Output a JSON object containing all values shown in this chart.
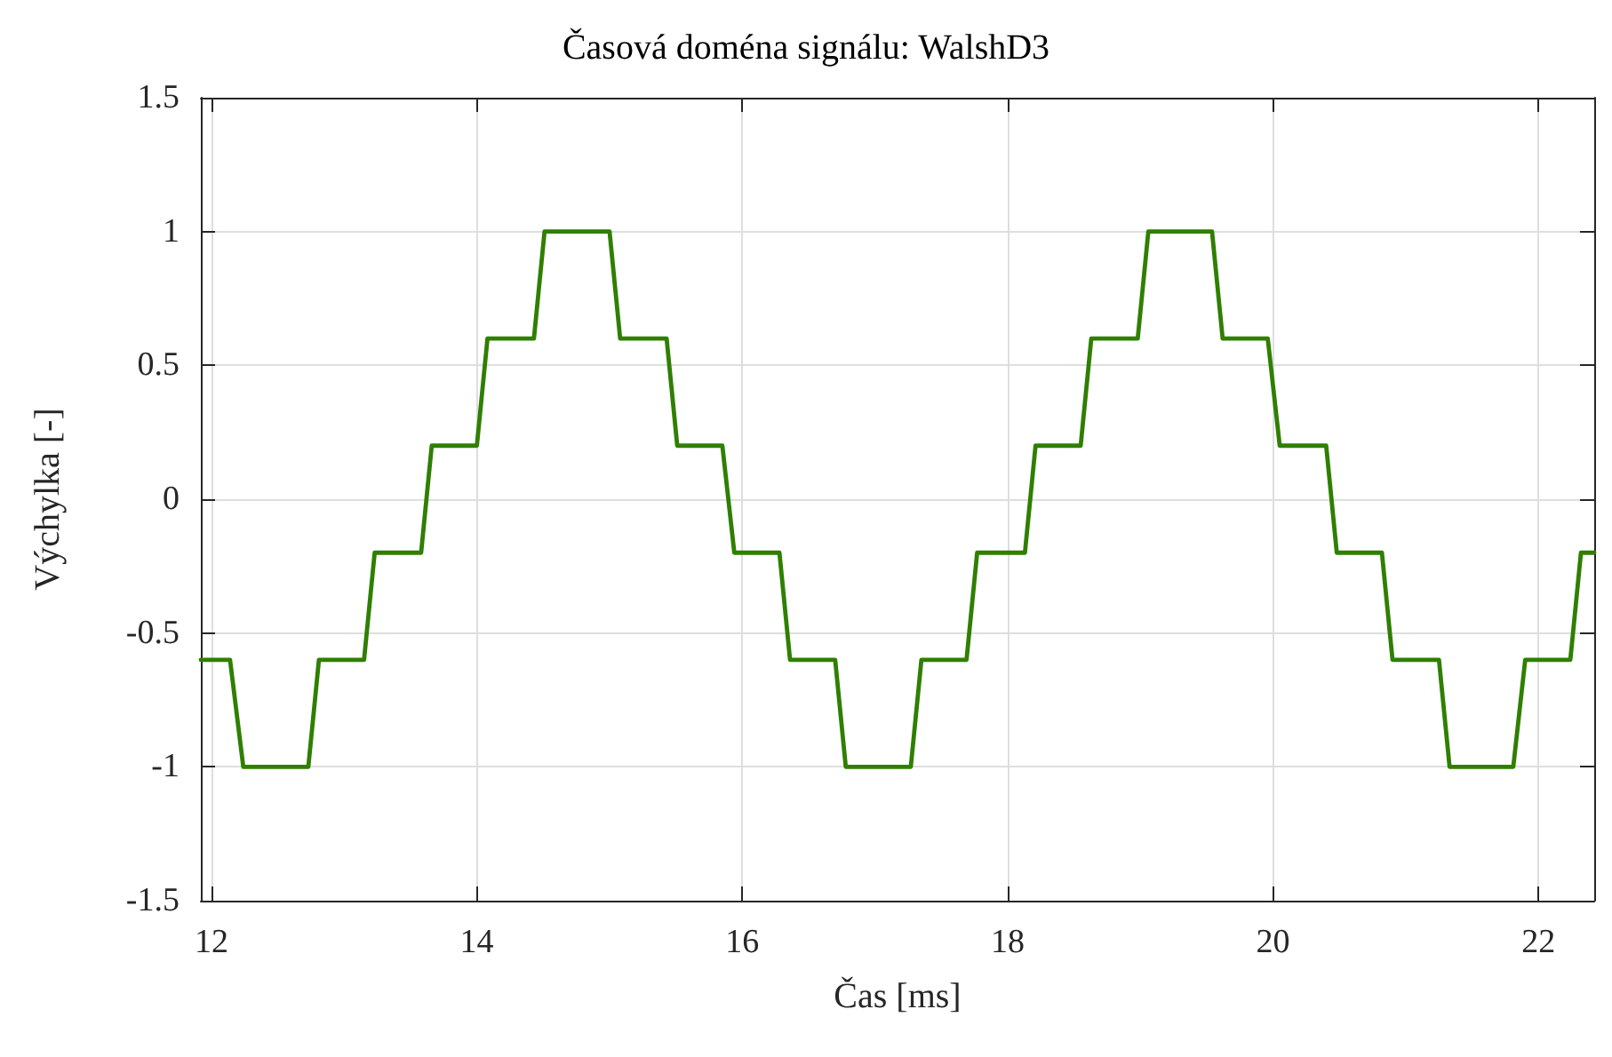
{
  "chart_data": {
    "type": "line",
    "title": "Časová doména signálu: WalshD3",
    "xlabel": "Čas [ms]",
    "ylabel": "Výchylka [-]",
    "x": [
      11.92,
      12.14,
      12.24,
      12.73,
      12.81,
      13.15,
      13.23,
      13.58,
      13.66,
      14.0,
      14.08,
      14.43,
      14.51,
      15.0,
      15.08,
      15.43,
      15.51,
      15.85,
      15.94,
      16.28,
      16.36,
      16.7,
      16.78,
      17.27,
      17.35,
      17.69,
      17.77,
      18.13,
      18.21,
      18.55,
      18.63,
      18.98,
      19.06,
      19.54,
      19.62,
      19.96,
      20.05,
      20.4,
      20.48,
      20.82,
      20.9,
      21.25,
      21.33,
      21.81,
      21.9,
      22.24,
      22.32,
      22.42
    ],
    "series": [
      {
        "color": "#2f7f00",
        "values": [
          -0.6,
          -0.6,
          -1,
          -1,
          -0.6,
          -0.6,
          -0.2,
          -0.2,
          0.2,
          0.2,
          0.6,
          0.6,
          1,
          1,
          0.6,
          0.6,
          0.2,
          0.2,
          -0.2,
          -0.2,
          -0.6,
          -0.6,
          -1,
          -1,
          -0.6,
          -0.6,
          -0.2,
          -0.2,
          0.2,
          0.2,
          0.6,
          0.6,
          1,
          1,
          0.6,
          0.6,
          0.2,
          0.2,
          -0.2,
          -0.2,
          -0.6,
          -0.6,
          -1,
          -1,
          -0.6,
          -0.6,
          -0.2,
          -0.2
        ]
      }
    ],
    "xlim": [
      11.92,
      22.42
    ],
    "xticks": [
      12,
      14,
      16,
      18,
      20,
      22
    ],
    "ylim": [
      -1.5,
      1.5
    ],
    "yticks": [
      -1.5,
      -1,
      -0.5,
      0,
      0.5,
      1,
      1.5
    ],
    "grid": true,
    "marker": "none",
    "line_style": "solid"
  }
}
